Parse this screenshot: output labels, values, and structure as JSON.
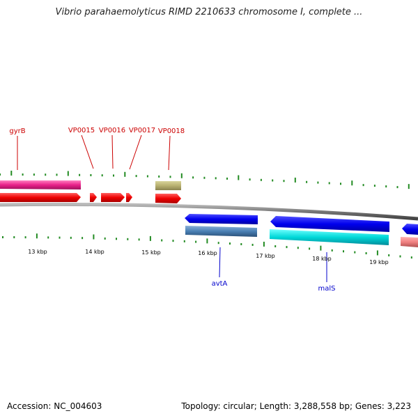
{
  "title": "Vibrio parahaemolyticus RIMD 2210633 chromosome I, complete ...",
  "footer": {
    "accession": "Accession: NC_004603",
    "summary": "Topology: circular; Length: 3,288,558 bp; Genes: 3,223"
  },
  "colors": {
    "backbone": "#888888",
    "tick": "#228b22",
    "label_top": "#cc0000",
    "label_bottom": "#0000cc"
  },
  "genes_top": [
    {
      "label": "gyrB",
      "color": "#cc0000"
    },
    {
      "label": "VP0015",
      "color": "#cc0000"
    },
    {
      "label": "VP0016",
      "color": "#cc0000"
    },
    {
      "label": "VP0017",
      "color": "#cc0000"
    },
    {
      "label": "VP0018",
      "color": "#cc0000"
    }
  ],
  "genes_bottom": [
    {
      "label": "avtA",
      "color": "#0000cc"
    },
    {
      "label": "malS",
      "color": "#0000cc"
    }
  ],
  "scale": {
    "labels": [
      "13 kbp",
      "14 kbp",
      "15 kbp",
      "16 kbp",
      "17 kbp",
      "18 kbp",
      "19 kbp"
    ]
  }
}
